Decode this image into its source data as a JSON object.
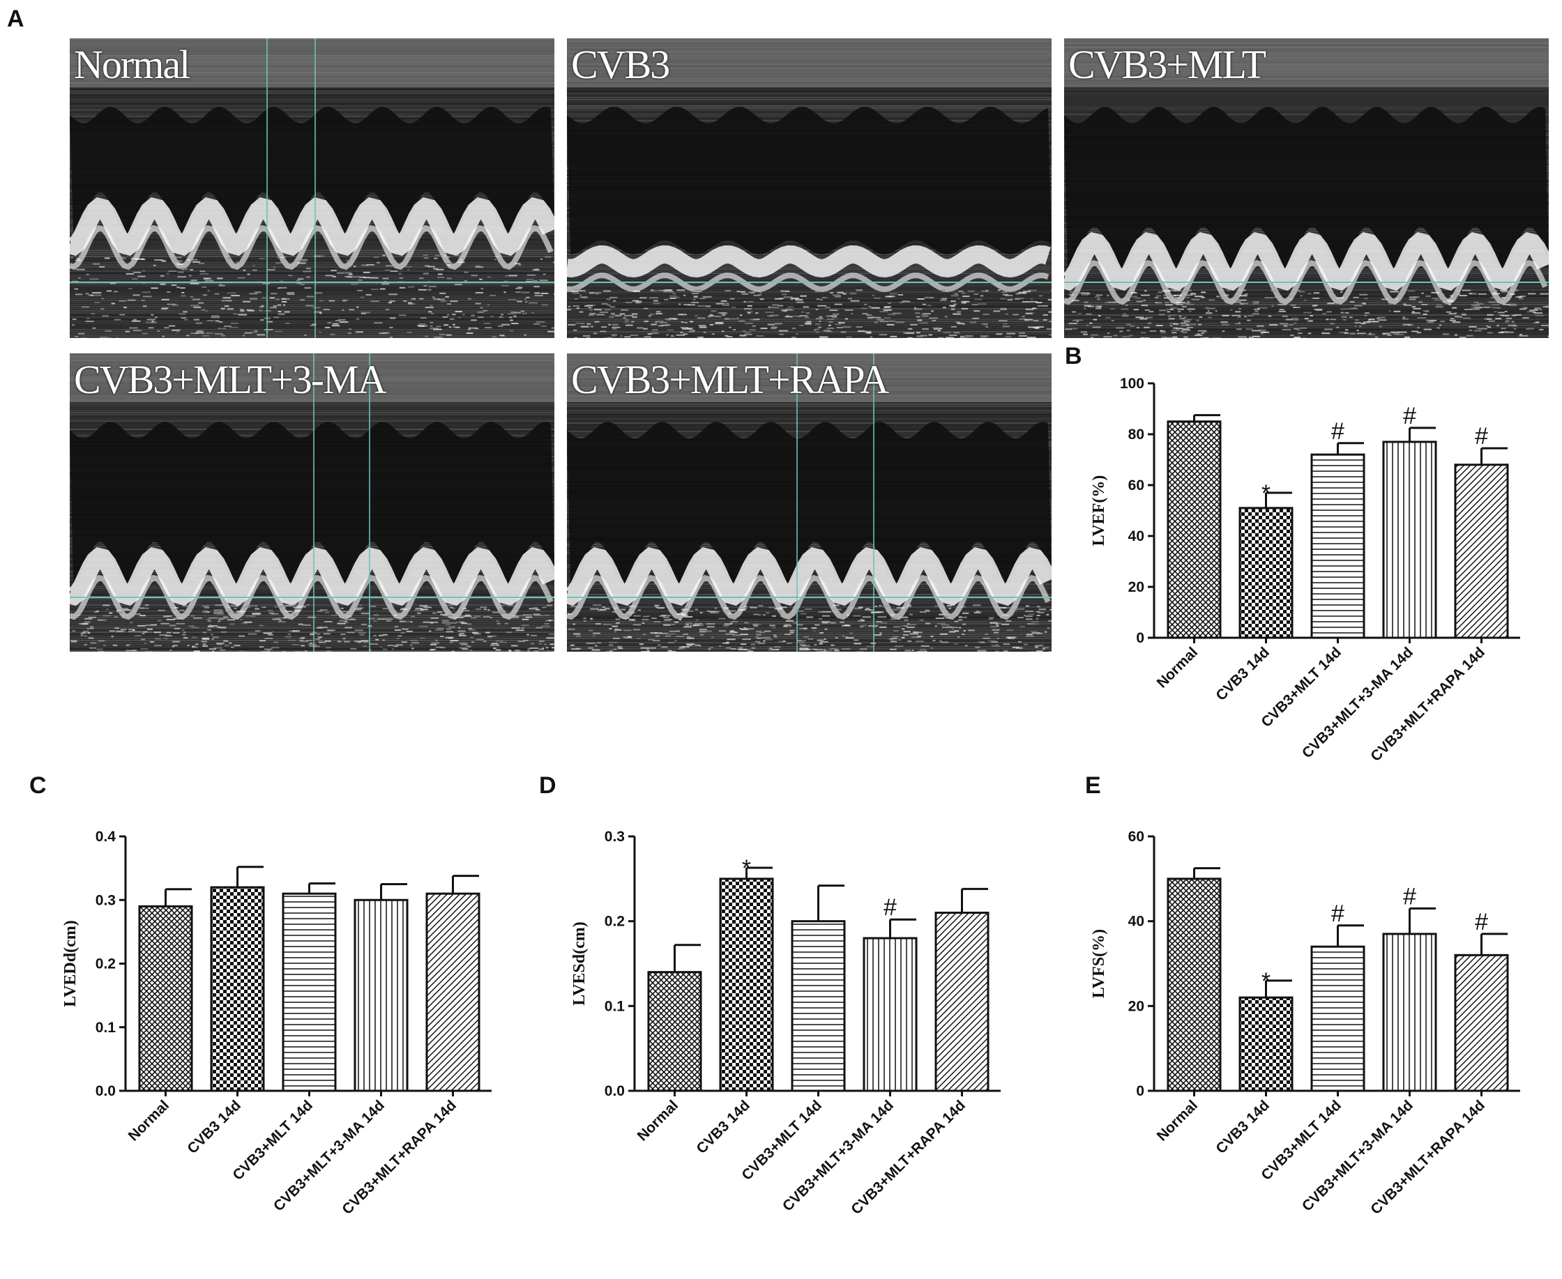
{
  "panel_letters": {
    "a": "A",
    "b": "B",
    "c": "C",
    "d": "D",
    "e": "E"
  },
  "echo_panels": [
    {
      "label": "Normal"
    },
    {
      "label": "CVB3"
    },
    {
      "label": "CVB3+MLT"
    },
    {
      "label": "CVB3+MLT+3-MA"
    },
    {
      "label": "CVB3+MLT+RAPA"
    }
  ],
  "colors": {
    "guide_line": "#6fc0bd",
    "bar_stroke": "#111111"
  },
  "chart_data": [
    {
      "id": "B",
      "type": "bar",
      "categories": [
        "Normal",
        "CVB3 14d",
        "CVB3+MLT 14d",
        "CVB3+MLT+3-MA 14d",
        "CVB3+MLT+RAPA 14d"
      ],
      "values": [
        85,
        51,
        72,
        77,
        68
      ],
      "errors": [
        2.5,
        6,
        4.5,
        5.5,
        6.5
      ],
      "annotations": [
        "",
        "*",
        "#",
        "#",
        "#"
      ],
      "patterns": [
        "crosshatch",
        "checker",
        "horizontal",
        "vertical",
        "diagonal"
      ],
      "ylabel": "LVEF(%)",
      "ylim": [
        0,
        100
      ],
      "yticks": [
        "0",
        "20",
        "40",
        "60",
        "80",
        "100"
      ]
    },
    {
      "id": "C",
      "type": "bar",
      "categories": [
        "Normal",
        "CVB3 14d",
        "CVB3+MLT 14d",
        "CVB3+MLT+3-MA 14d",
        "CVB3+MLT+RAPA 14d"
      ],
      "values": [
        0.29,
        0.32,
        0.31,
        0.3,
        0.31
      ],
      "errors": [
        0.027,
        0.032,
        0.016,
        0.025,
        0.028
      ],
      "annotations": [
        "",
        "",
        "",
        "",
        ""
      ],
      "patterns": [
        "crosshatch",
        "checker",
        "horizontal",
        "vertical",
        "diagonal"
      ],
      "ylabel": "LVEDd(cm)",
      "ylim": [
        0,
        0.4
      ],
      "yticks": [
        "0.0",
        "0.1",
        "0.2",
        "0.3",
        "0.4"
      ]
    },
    {
      "id": "D",
      "type": "bar",
      "categories": [
        "Normal",
        "CVB3 14d",
        "CVB3+MLT 14d",
        "CVB3+MLT+3-MA 14d",
        "CVB3+MLT+RAPA 14d"
      ],
      "values": [
        0.14,
        0.25,
        0.2,
        0.18,
        0.21
      ],
      "errors": [
        0.032,
        0.013,
        0.042,
        0.022,
        0.028
      ],
      "annotations": [
        "",
        "*",
        "",
        "#",
        ""
      ],
      "patterns": [
        "crosshatch",
        "checker",
        "horizontal",
        "vertical",
        "diagonal"
      ],
      "ylabel": "LVESd(cm)",
      "ylim": [
        0,
        0.3
      ],
      "yticks": [
        "0.0",
        "0.1",
        "0.2",
        "0.3"
      ]
    },
    {
      "id": "E",
      "type": "bar",
      "categories": [
        "Normal",
        "CVB3 14d",
        "CVB3+MLT 14d",
        "CVB3+MLT+3-MA 14d",
        "CVB3+MLT+RAPA 14d"
      ],
      "values": [
        50,
        22,
        34,
        37,
        32
      ],
      "errors": [
        2.5,
        4,
        5,
        6,
        5
      ],
      "annotations": [
        "",
        "*",
        "#",
        "#",
        "#"
      ],
      "patterns": [
        "crosshatch",
        "checker",
        "horizontal",
        "vertical",
        "diagonal"
      ],
      "ylabel": "LVFS(%)",
      "ylim": [
        0,
        60
      ],
      "yticks": [
        "0",
        "20",
        "40",
        "60"
      ]
    }
  ]
}
